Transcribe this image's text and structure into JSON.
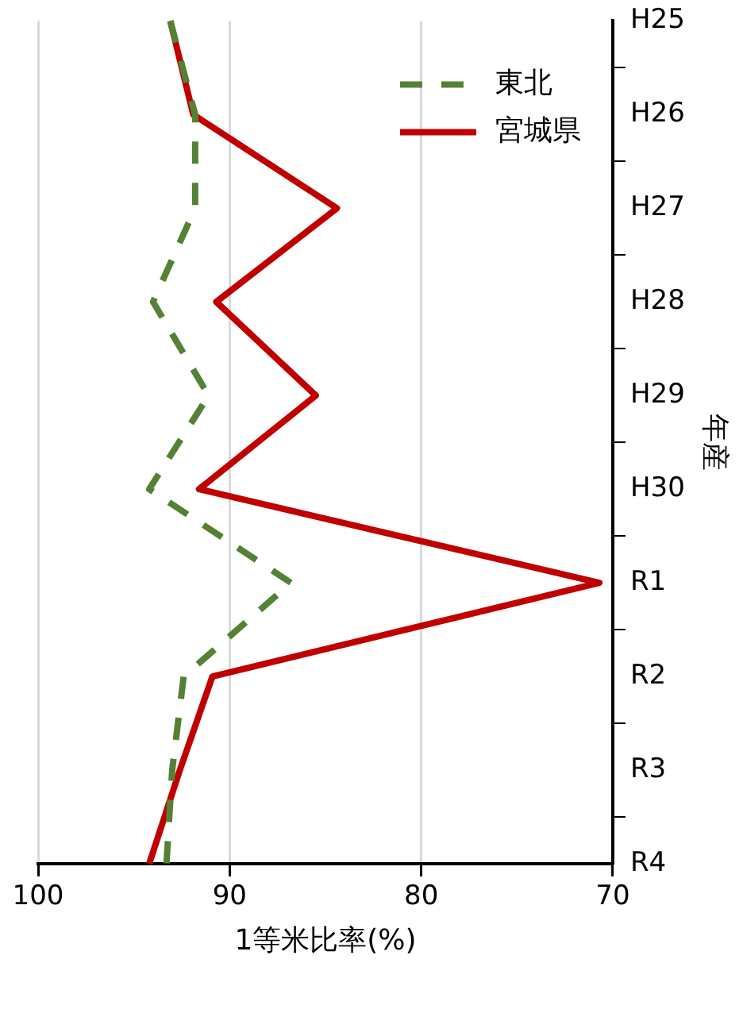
{
  "chart_data": {
    "type": "line",
    "orientation": "horizontal",
    "xlabel": "1等米比率(%)",
    "ylabel": "年産",
    "categories": [
      "H25",
      "H26",
      "H27",
      "H28",
      "H29",
      "H30",
      "R1",
      "R2",
      "R3",
      "R4"
    ],
    "xlim": [
      100,
      70
    ],
    "xticks": [
      100,
      90,
      80,
      70
    ],
    "grid": "x",
    "legend": "top right",
    "marker": "none",
    "series": [
      {
        "name": "東北",
        "color": "#548235",
        "line_style": "dashed",
        "values": [
          93.1,
          91.8,
          91.8,
          94.0,
          91.1,
          94.2,
          86.8,
          92.4,
          93.0,
          93.3
        ]
      },
      {
        "name": "宮城県",
        "color": "#c00000",
        "line_style": "solid",
        "values": [
          93.1,
          91.9,
          84.4,
          90.7,
          85.5,
          91.6,
          70.7,
          90.9,
          92.6,
          94.2
        ]
      }
    ]
  }
}
